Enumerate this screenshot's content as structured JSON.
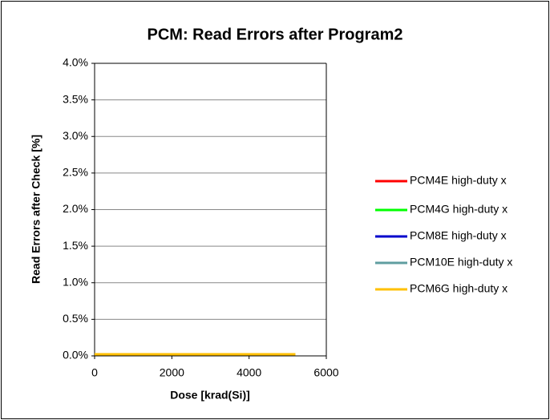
{
  "chart_data": {
    "type": "line",
    "title": "PCM: Read Errors after Program2",
    "x_label": "Dose [krad(Si)]",
    "y_label": "Read Errors after Check [%]",
    "series": [
      {
        "name": "PCM4E high-duty x",
        "color": "#ff0000",
        "x": [
          0,
          4300
        ],
        "values": [
          0,
          0
        ]
      },
      {
        "name": "PCM4G high-duty x",
        "color": "#00ff00",
        "x": [
          0,
          4300
        ],
        "values": [
          0,
          0
        ]
      },
      {
        "name": "PCM8E high-duty x",
        "color": "#0000cc",
        "x": [
          0,
          4300
        ],
        "values": [
          0,
          0
        ]
      },
      {
        "name": "PCM10E high-duty x",
        "color": "#5f9ea0",
        "x": [
          0,
          4300
        ],
        "values": [
          0,
          0
        ]
      },
      {
        "name": "PCM6G high-duty x",
        "color": "#ffc000",
        "x": [
          0,
          5200
        ],
        "values": [
          0,
          0
        ]
      }
    ],
    "xlim": [
      0,
      6000
    ],
    "xticks": [
      0,
      2000,
      4000,
      6000
    ],
    "ylim": [
      0,
      4
    ],
    "yticks": [
      {
        "value": 0,
        "label": "0.0%"
      },
      {
        "value": 0.5,
        "label": "0.5%"
      },
      {
        "value": 1,
        "label": "1.0%"
      },
      {
        "value": 1.5,
        "label": "1.5%"
      },
      {
        "value": 2,
        "label": "2.0%"
      },
      {
        "value": 2.5,
        "label": "2.5%"
      },
      {
        "value": 3,
        "label": "3.0%"
      },
      {
        "value": 3.5,
        "label": "3.5%"
      },
      {
        "value": 4,
        "label": "4.0%"
      }
    ],
    "grid": true,
    "legend": "right"
  }
}
